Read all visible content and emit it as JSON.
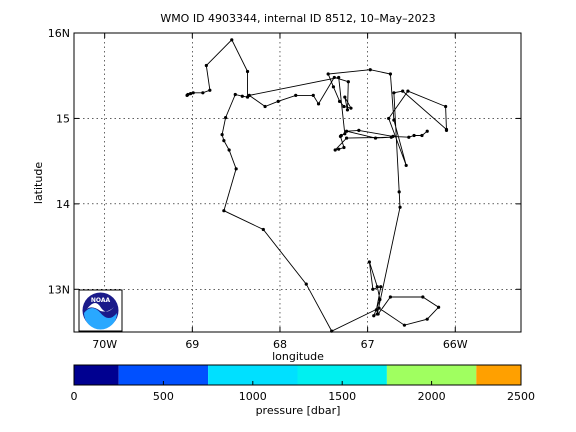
{
  "chart_data": {
    "type": "line",
    "title": "WMO ID 4903344, internal ID 8512, 10–May–2023",
    "xlabel": "longitude",
    "ylabel": "latitude",
    "xlim": [
      -70.35,
      -65.25
    ],
    "ylim": [
      12.5,
      16.0
    ],
    "x_ticks": [
      {
        "value": -70,
        "label": "70W"
      },
      {
        "value": -69,
        "label": "69"
      },
      {
        "value": -68,
        "label": "68"
      },
      {
        "value": -67,
        "label": "67"
      },
      {
        "value": -66,
        "label": "66W"
      }
    ],
    "y_ticks": [
      {
        "value": 13,
        "label": "13N"
      },
      {
        "value": 14,
        "label": "14"
      },
      {
        "value": 15,
        "label": "15"
      },
      {
        "value": 16,
        "label": "16N"
      }
    ],
    "grid": true,
    "series": [
      {
        "points": [
          [
            -69.06,
            15.27
          ],
          [
            -69.05,
            15.28
          ],
          [
            -69.02,
            15.29
          ],
          [
            -68.99,
            15.3
          ],
          [
            -68.88,
            15.3
          ],
          [
            -68.8,
            15.33
          ],
          [
            -68.84,
            15.62
          ],
          [
            -68.55,
            15.92
          ],
          [
            -68.37,
            15.55
          ],
          [
            -68.37,
            15.25
          ],
          [
            -68.43,
            15.26
          ],
          [
            -68.51,
            15.28
          ],
          [
            -68.62,
            15.01
          ],
          [
            -68.66,
            14.81
          ],
          [
            -68.64,
            14.74
          ],
          [
            -68.58,
            14.63
          ],
          [
            -68.5,
            14.41
          ],
          [
            -68.64,
            13.92
          ],
          [
            -68.19,
            13.7
          ],
          [
            -67.7,
            13.06
          ],
          [
            -67.41,
            12.51
          ],
          [
            -66.87,
            12.78
          ],
          [
            -66.58,
            12.58
          ],
          [
            -66.32,
            12.65
          ],
          [
            -66.19,
            12.79
          ],
          [
            -66.37,
            12.91
          ],
          [
            -66.74,
            12.91
          ],
          [
            -66.88,
            12.71
          ],
          [
            -66.9,
            12.76
          ],
          [
            -66.85,
            13.03
          ],
          [
            -66.94,
            13.0
          ],
          [
            -66.98,
            13.32
          ],
          [
            -66.89,
            13.03
          ],
          [
            -66.86,
            12.88
          ],
          [
            -66.93,
            12.69
          ],
          [
            -66.89,
            12.71
          ],
          [
            -66.63,
            13.96
          ],
          [
            -66.64,
            14.14
          ],
          [
            -66.7,
            15.3
          ],
          [
            -66.6,
            15.32
          ],
          [
            -66.1,
            14.87
          ],
          [
            -66.1,
            14.86
          ],
          [
            -66.11,
            15.14
          ],
          [
            -66.54,
            15.32
          ],
          [
            -66.76,
            15.0
          ],
          [
            -66.56,
            14.45
          ],
          [
            -66.7,
            14.98
          ],
          [
            -66.74,
            15.52
          ],
          [
            -66.97,
            15.57
          ],
          [
            -67.45,
            15.52
          ],
          [
            -67.39,
            15.37
          ],
          [
            -67.32,
            15.2
          ],
          [
            -67.27,
            15.14
          ],
          [
            -67.19,
            15.12
          ],
          [
            -67.26,
            15.25
          ],
          [
            -67.23,
            15.1
          ],
          [
            -67.22,
            15.43
          ],
          [
            -67.38,
            15.48
          ],
          [
            -67.56,
            15.17
          ],
          [
            -67.62,
            15.27
          ],
          [
            -67.82,
            15.27
          ],
          [
            -68.02,
            15.2
          ],
          [
            -68.17,
            15.14
          ],
          [
            -68.35,
            15.27
          ],
          [
            -67.33,
            15.48
          ],
          [
            -67.26,
            14.82
          ],
          [
            -67.3,
            14.8
          ],
          [
            -67.31,
            14.79
          ],
          [
            -67.27,
            14.66
          ],
          [
            -67.33,
            14.64
          ],
          [
            -67.37,
            14.63
          ],
          [
            -67.24,
            14.77
          ],
          [
            -66.73,
            14.78
          ],
          [
            -66.91,
            14.77
          ],
          [
            -67.24,
            14.85
          ],
          [
            -67.1,
            14.86
          ],
          [
            -66.71,
            14.79
          ],
          [
            -66.53,
            14.78
          ],
          [
            -66.47,
            14.8
          ],
          [
            -66.38,
            14.8
          ],
          [
            -66.32,
            14.85
          ]
        ]
      }
    ],
    "colorbar": {
      "label": "pressure [dbar]",
      "range": [
        0,
        2500
      ],
      "ticks": [
        {
          "value": 0,
          "label": "0"
        },
        {
          "value": 500,
          "label": "500"
        },
        {
          "value": 1000,
          "label": "1000"
        },
        {
          "value": 1500,
          "label": "1500"
        },
        {
          "value": 2000,
          "label": "2000"
        },
        {
          "value": 2500,
          "label": "2500"
        }
      ],
      "bands": [
        {
          "from": 0,
          "to": 250,
          "color": "#000090"
        },
        {
          "from": 250,
          "to": 750,
          "color": "#0050ff"
        },
        {
          "from": 750,
          "to": 1250,
          "color": "#00e0ff"
        },
        {
          "from": 1250,
          "to": 1750,
          "color": "#00f0f0"
        },
        {
          "from": 1750,
          "to": 2250,
          "color": "#a0ff60"
        },
        {
          "from": 2250,
          "to": 2500,
          "color": "#ffa000"
        }
      ]
    },
    "logo": {
      "text": "NOAA",
      "colors": [
        "#1a1a8a",
        "#29a8ff",
        "#ffffff"
      ]
    }
  }
}
